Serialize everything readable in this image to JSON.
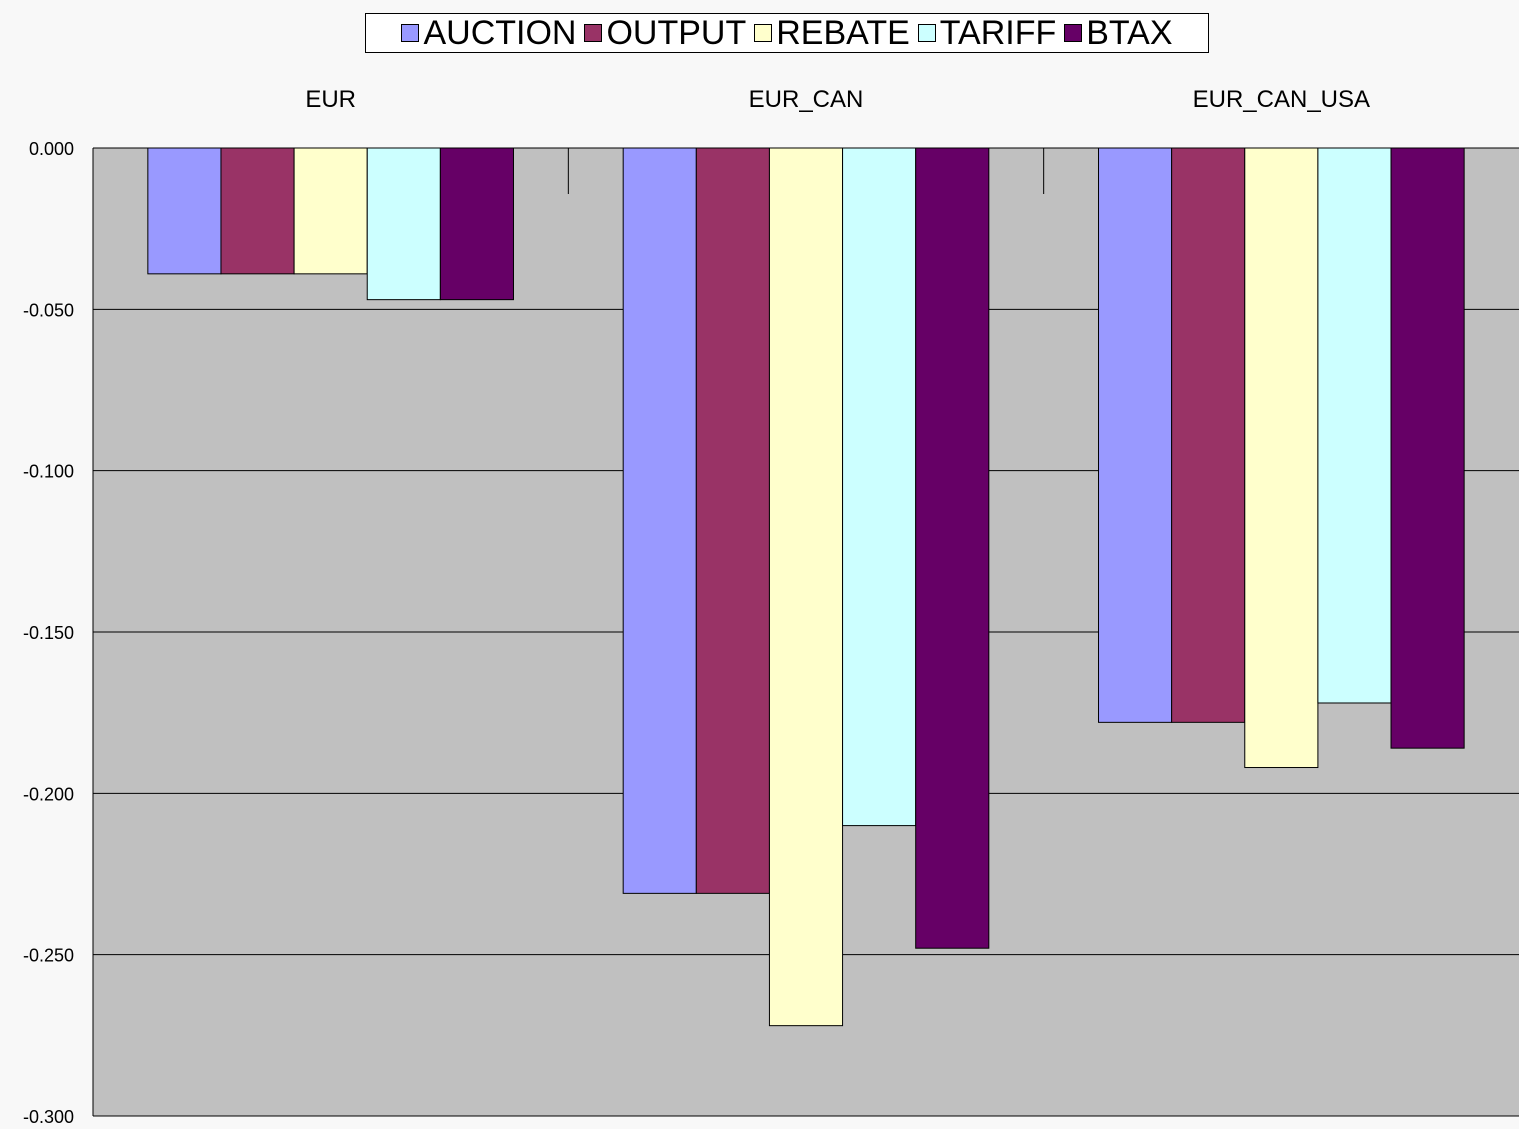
{
  "chart_data": {
    "type": "bar",
    "categories": [
      "EUR",
      "EUR_CAN",
      "EUR_CAN_USA"
    ],
    "series": [
      {
        "name": "AUCTION",
        "color": "#9999ff",
        "values": [
          -0.039,
          -0.231,
          -0.178
        ]
      },
      {
        "name": "OUTPUT",
        "color": "#993366",
        "values": [
          -0.039,
          -0.231,
          -0.178
        ]
      },
      {
        "name": "REBATE",
        "color": "#ffffcc",
        "values": [
          -0.039,
          -0.272,
          -0.192
        ]
      },
      {
        "name": "TARIFF",
        "color": "#ccffff",
        "values": [
          -0.047,
          -0.21,
          -0.172
        ]
      },
      {
        "name": "BTAX",
        "color": "#660066",
        "values": [
          -0.047,
          -0.248,
          -0.186
        ]
      }
    ],
    "ylim": [
      -0.3,
      0.0
    ],
    "yticks": [
      "0.000",
      "-0.050",
      "-0.100",
      "-0.150",
      "-0.200",
      "-0.250",
      "-0.300"
    ],
    "category_labels_position": "top",
    "legend_position": "top-center",
    "grid": true,
    "plot_background": "#c0c0c0"
  }
}
